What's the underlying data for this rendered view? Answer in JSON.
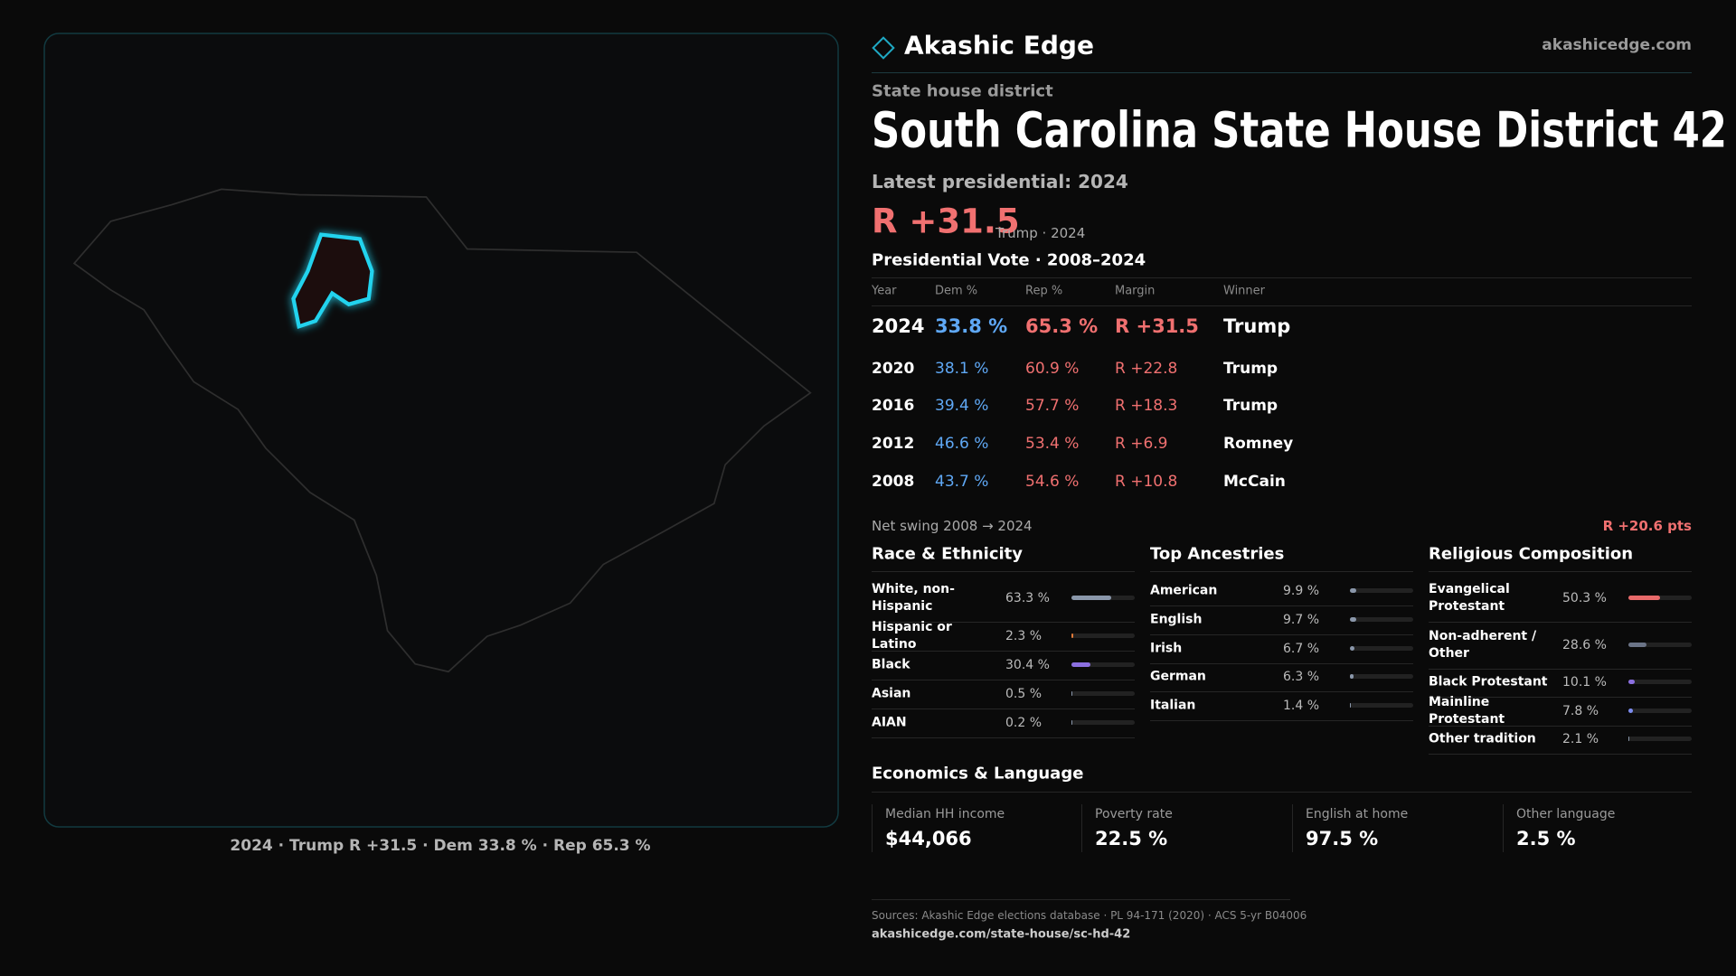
{
  "header": {
    "brand": "Akashic Edge",
    "site": "akashicedge.com"
  },
  "map": {
    "caption": "2024 · Trump R +31.5 · Dem 33.8 % · Rep 65.3 %"
  },
  "district": {
    "kind": "State house district",
    "title": "South Carolina State House District 42",
    "latest": "Latest presidential: 2024",
    "margin": "R +31.5",
    "margin_note": "Trump · 2024"
  },
  "votes": {
    "title": "Presidential Vote · 2008–2024",
    "columns": [
      "Year",
      "Dem %",
      "Rep %",
      "Margin",
      "Winner"
    ],
    "rows": [
      [
        "2024",
        "33.8 %",
        "65.3 %",
        "R +31.5",
        "Trump"
      ],
      [
        "2020",
        "38.1 %",
        "60.9 %",
        "R +22.8",
        "Trump"
      ],
      [
        "2016",
        "39.4 %",
        "57.7 %",
        "R +18.3",
        "Trump"
      ],
      [
        "2012",
        "46.6 %",
        "53.4 %",
        "R +6.9",
        "Romney"
      ],
      [
        "2008",
        "43.7 %",
        "54.6 %",
        "R +10.8",
        "McCain"
      ]
    ],
    "swing_label": "Net swing 2008 → 2024",
    "swing": "R +20.6 pts"
  },
  "race": {
    "title": "Race & Ethnicity",
    "rows": [
      {
        "label": "White, non-Hispanic",
        "share": {
          "value": 63.3,
          "label": "63.3 %"
        },
        "color": "#8a97aa"
      },
      {
        "label": "Hispanic or Latino",
        "share": {
          "value": 2.3,
          "label": "2.3 %"
        },
        "color": "#e07b39"
      },
      {
        "label": "Black",
        "share": {
          "value": 30.4,
          "label": "30.4 %"
        },
        "color": "#8b6fe0"
      },
      {
        "label": "Asian",
        "share": {
          "value": 0.5,
          "label": "0.5 %"
        },
        "color": "#8a97aa"
      },
      {
        "label": "AIAN",
        "share": {
          "value": 0.2,
          "label": "0.2 %"
        },
        "color": "#8a97aa"
      }
    ]
  },
  "ancestry": {
    "title": "Top Ancestries",
    "rows": [
      {
        "label": "American",
        "share": {
          "value": 9.9,
          "label": "9.9 %"
        },
        "color": "#8a97aa"
      },
      {
        "label": "English",
        "share": {
          "value": 9.7,
          "label": "9.7 %"
        },
        "color": "#8a97aa"
      },
      {
        "label": "Irish",
        "share": {
          "value": 6.7,
          "label": "6.7 %"
        },
        "color": "#8a97aa"
      },
      {
        "label": "German",
        "share": {
          "value": 6.3,
          "label": "6.3 %"
        },
        "color": "#8a97aa"
      },
      {
        "label": "Italian",
        "share": {
          "value": 1.4,
          "label": "1.4 %"
        },
        "color": "#8a97aa"
      }
    ]
  },
  "religion": {
    "title": "Religious Composition",
    "rows": [
      {
        "label": "Evangelical Protestant",
        "share": {
          "value": 50.3,
          "label": "50.3 %"
        },
        "color": "#e86a6a"
      },
      {
        "label": "Non-adherent / Other",
        "share": {
          "value": 28.6,
          "label": "28.6 %"
        },
        "color": "#6b7487"
      },
      {
        "label": "Black Protestant",
        "share": {
          "value": 10.1,
          "label": "10.1 %"
        },
        "color": "#8b6fe0"
      },
      {
        "label": "Mainline Protestant",
        "share": {
          "value": 7.8,
          "label": "7.8 %"
        },
        "color": "#7c8cf0"
      },
      {
        "label": "Other tradition",
        "share": {
          "value": 2.1,
          "label": "2.1 %"
        },
        "color": "#8a97aa"
      }
    ]
  },
  "economics": {
    "title": "Economics & Language",
    "cards": [
      {
        "label": "Median HH income",
        "value": "$44,066"
      },
      {
        "label": "Poverty rate",
        "value": "22.5 %"
      },
      {
        "label": "English at home",
        "value": "97.5 %"
      },
      {
        "label": "Other language",
        "value": "2.5 %"
      }
    ]
  },
  "footer": {
    "sources": "Sources: Akashic Edge elections database · PL 94-171 (2020) · ACS 5-yr B04006",
    "url": "akashicedge.com/state-house/sc-hd-42"
  }
}
